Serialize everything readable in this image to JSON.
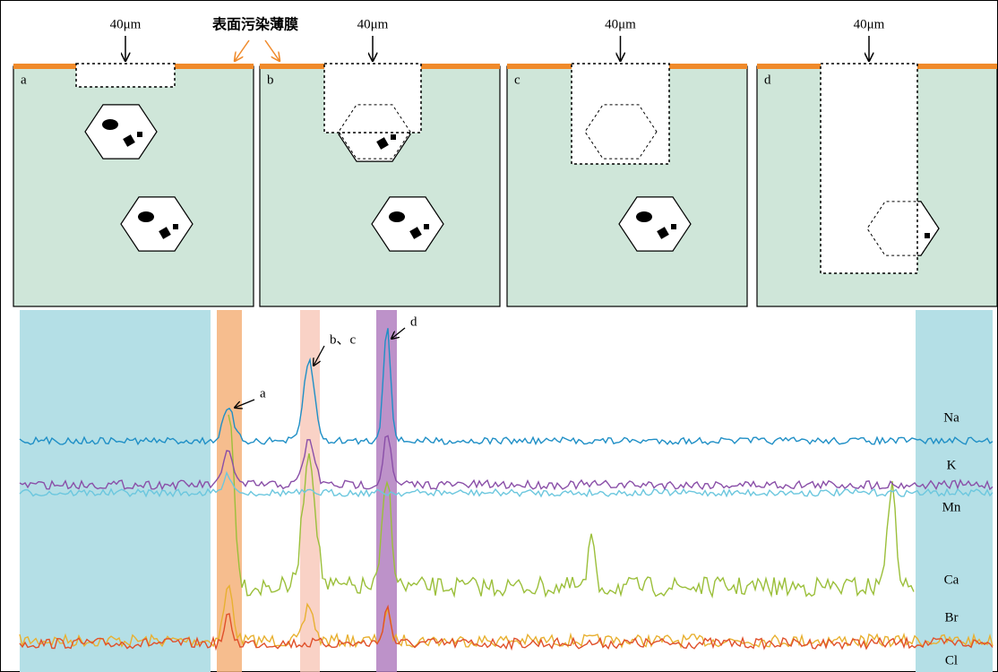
{
  "header": {
    "contamination_label": "表面污染薄膜"
  },
  "panels": [
    {
      "label": "a",
      "scale": "40μm"
    },
    {
      "label": "b",
      "scale": "40μm"
    },
    {
      "label": "c",
      "scale": "40μm"
    },
    {
      "label": "d",
      "scale": "40μm"
    }
  ],
  "peaks": [
    {
      "label": "a"
    },
    {
      "label": "b、c"
    },
    {
      "label": "d"
    }
  ],
  "elements": [
    "Na",
    "K",
    "Mn",
    "Ca",
    "Br",
    "Cl"
  ]
}
